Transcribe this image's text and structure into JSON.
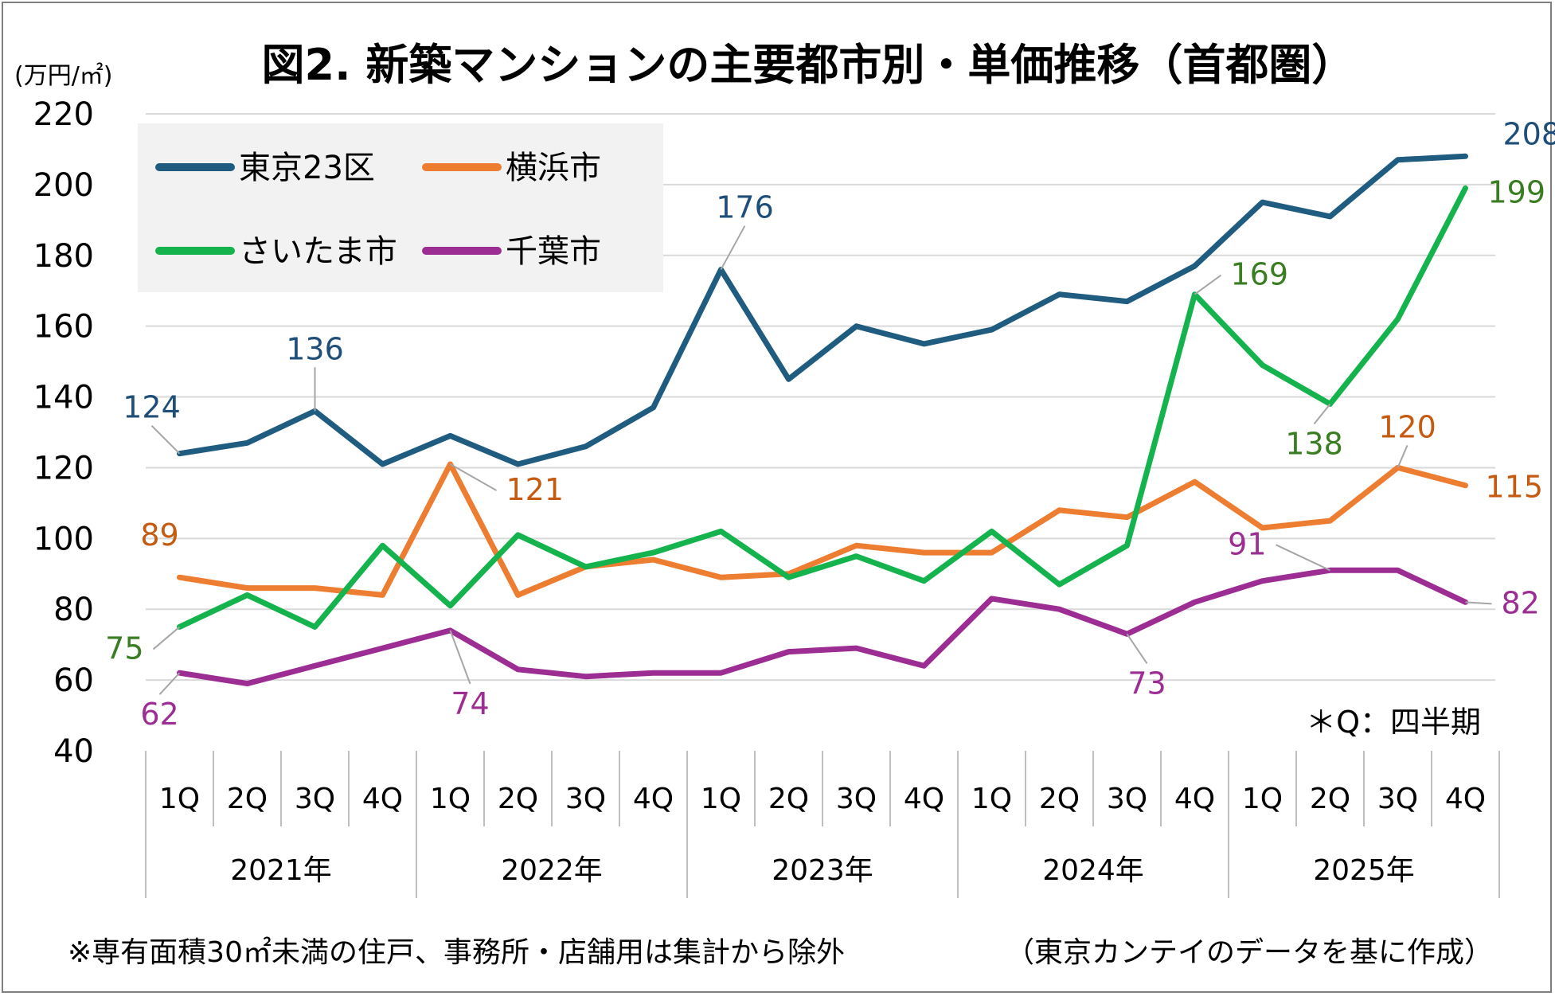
{
  "chart_data": {
    "type": "line",
    "title": "図2. 新築マンションの主要都市別・単価推移（首都圏）",
    "ylabel": "(万円/㎡)",
    "ylim": [
      40,
      220
    ],
    "yticks": [
      40,
      60,
      80,
      100,
      120,
      140,
      160,
      180,
      200,
      220
    ],
    "grid": true,
    "legend_position": "top-left",
    "quarters": [
      "1Q",
      "2Q",
      "3Q",
      "4Q",
      "1Q",
      "2Q",
      "3Q",
      "4Q",
      "1Q",
      "2Q",
      "3Q",
      "4Q",
      "1Q",
      "2Q",
      "3Q",
      "4Q",
      "1Q",
      "2Q",
      "3Q",
      "4Q"
    ],
    "years": [
      "2021年",
      "2022年",
      "2023年",
      "2024年",
      "2025年"
    ],
    "series": [
      {
        "name": "東京23区",
        "color": "#1f5c7f",
        "values": [
          124,
          127,
          136,
          121,
          129,
          121,
          126,
          137,
          176,
          145,
          160,
          155,
          159,
          169,
          167,
          177,
          195,
          191,
          207,
          208
        ],
        "data_labels": [
          {
            "index": 0,
            "text": "124"
          },
          {
            "index": 2,
            "text": "136"
          },
          {
            "index": 8,
            "text": "176"
          },
          {
            "index": 19,
            "text": "208"
          }
        ]
      },
      {
        "name": "横浜市",
        "color": "#ed7d31",
        "values": [
          89,
          86,
          86,
          84,
          121,
          84,
          92,
          94,
          89,
          90,
          98,
          96,
          96,
          108,
          106,
          116,
          103,
          105,
          120,
          115
        ],
        "data_labels": [
          {
            "index": 0,
            "text": "89"
          },
          {
            "index": 4,
            "text": "121"
          },
          {
            "index": 18,
            "text": "120"
          },
          {
            "index": 19,
            "text": "115"
          }
        ]
      },
      {
        "name": "さいたま市",
        "color": "#15b34e",
        "values": [
          75,
          84,
          75,
          98,
          81,
          101,
          92,
          96,
          102,
          89,
          95,
          88,
          102,
          87,
          98,
          169,
          149,
          138,
          162,
          199
        ],
        "data_labels": [
          {
            "index": 0,
            "text": "75"
          },
          {
            "index": 15,
            "text": "169"
          },
          {
            "index": 17,
            "text": "138"
          },
          {
            "index": 19,
            "text": "199"
          }
        ]
      },
      {
        "name": "千葉市",
        "color": "#9c2e93",
        "values": [
          62,
          59,
          64,
          69,
          74,
          63,
          61,
          62,
          62,
          68,
          69,
          64,
          83,
          80,
          73,
          82,
          88,
          91,
          91,
          82
        ],
        "data_labels": [
          {
            "index": 0,
            "text": "62"
          },
          {
            "index": 4,
            "text": "74"
          },
          {
            "index": 14,
            "text": "73"
          },
          {
            "index": 17,
            "text": "91"
          },
          {
            "index": 19,
            "text": "82"
          }
        ]
      }
    ],
    "annotation": "＊Q：四半期",
    "footnote_left": "※専有面積30㎡未満の住戸、事務所・店舗用は集計から除外",
    "footnote_right": "（東京カンテイのデータを基に作成）"
  },
  "colors": {
    "grid": "#d9d9d9",
    "axis": "#bfbfbf",
    "legend_bg": "#f2f2f2",
    "frame": "#7f7f7f",
    "text": "#000000"
  }
}
